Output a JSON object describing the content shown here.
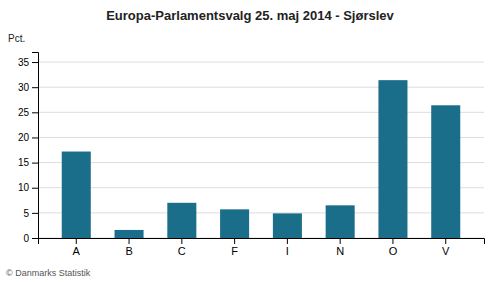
{
  "chart_data": {
    "type": "bar",
    "title": "Europa-Parlamentsvalg 25. maj 2014 - Sjørslev",
    "ylabel": "Pct.",
    "annotations": [
      "© Danmarks Statistik"
    ],
    "categories": [
      "A",
      "B",
      "C",
      "F",
      "I",
      "N",
      "O",
      "V"
    ],
    "values": [
      17.2,
      1.6,
      7.0,
      5.7,
      4.9,
      6.5,
      31.4,
      26.4
    ],
    "color": "#1a6e8a",
    "ylim": [
      0,
      37
    ],
    "yticks": [
      0,
      5,
      10,
      15,
      20,
      25,
      30,
      35
    ],
    "grid": true
  }
}
